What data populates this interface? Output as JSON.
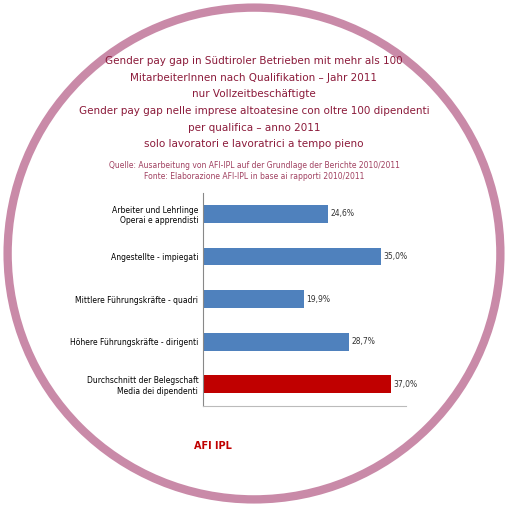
{
  "chart_data": {
    "type": "bar",
    "orientation": "horizontal",
    "title": [
      "Gender pay gap in Südtiroler Betrieben mit mehr als 100",
      "MitarbeiterInnen nach Qualifikation – Jahr 2011",
      "nur Vollzeitbeschäftigte",
      "Gender pay gap nelle imprese altoatesine con oltre 100 dipendenti",
      "per qualifica – anno 2011",
      "solo lavoratori e lavoratrici a tempo pieno"
    ],
    "subtitle": [
      "Quelle: Ausarbeitung von AFI-IPL auf der Grundlage der Berichte 2010/2011",
      "Fonte: Elaborazione AFI-IPL in base ai rapporti 2010/2011"
    ],
    "categories": [
      "Arbeiter und Lehrlinge\nOperai e apprendisti",
      "Angestellte - impiegati",
      "Mittlere Führungskräfte - quadri",
      "Höhere Führungskräfte - dirigenti",
      "Durchschnitt der Belegschaft\nMedia dei dipendenti"
    ],
    "values": [
      24.6,
      35.0,
      19.9,
      28.7,
      37.0
    ],
    "value_labels": [
      "24,6%",
      "35,0%",
      "19,9%",
      "28,7%",
      "37,0%"
    ],
    "colors": [
      "#4f81bd",
      "#4f81bd",
      "#4f81bd",
      "#4f81bd",
      "#c00000"
    ],
    "xlim": [
      0,
      40
    ],
    "data_labels": true,
    "tick_labels": "y",
    "logo": "AFI IPL"
  }
}
